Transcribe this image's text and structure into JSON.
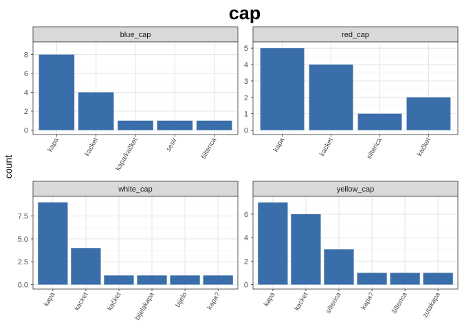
{
  "title": "cap",
  "ylabel": "count",
  "colors": {
    "bar": "#3a6eaa",
    "strip_fill": "#d9d9d9",
    "strip_border": "#333333",
    "panel_border": "#333333",
    "grid_major": "#e6e6e6",
    "grid_minor": "#f2f2f2",
    "axis_text": "#4d4d4d"
  },
  "chart_data": [
    {
      "type": "bar",
      "facet": "blue_cap",
      "categories": [
        "kapa",
        "kacket",
        "kapa/kačket",
        "sesir",
        "šilterica"
      ],
      "values": [
        8,
        4,
        1,
        1,
        1
      ],
      "ylim": [
        0,
        9.2
      ],
      "yticks": [
        "0",
        "2",
        "4",
        "6",
        "8"
      ],
      "ytick_values": [
        0,
        2,
        4,
        6,
        8
      ],
      "grid": true
    },
    {
      "type": "bar",
      "facet": "red_cap",
      "categories": [
        "kapa",
        "kacket",
        "silterica",
        "kačket"
      ],
      "values": [
        5,
        4,
        1,
        2
      ],
      "ylim": [
        0,
        5.3
      ],
      "yticks": [
        "0",
        "1",
        "2",
        "3",
        "4",
        "5"
      ],
      "ytick_values": [
        0,
        1,
        2,
        3,
        4,
        5
      ],
      "grid": true
    },
    {
      "type": "bar",
      "facet": "white_cap",
      "categories": [
        "kapa",
        "kacket",
        "kačket",
        "bijelakapa",
        "bijelo",
        "kapa?"
      ],
      "values": [
        9,
        4,
        1,
        1,
        1,
        1
      ],
      "ylim": [
        0,
        9.5
      ],
      "yticks": [
        "0.0",
        "2.5",
        "5.0",
        "7.5"
      ],
      "ytick_values": [
        0,
        2.5,
        5,
        7.5
      ],
      "grid": true
    },
    {
      "type": "bar",
      "facet": "yellow_cap",
      "categories": [
        "kapa",
        "kacket",
        "silterica",
        "kapa?",
        "šilterica",
        "zutakapa"
      ],
      "values": [
        7,
        6,
        3,
        1,
        1,
        1
      ],
      "ylim": [
        0,
        7.4
      ],
      "yticks": [
        "0",
        "2",
        "4",
        "6"
      ],
      "ytick_values": [
        0,
        2,
        4,
        6
      ],
      "grid": true
    }
  ]
}
